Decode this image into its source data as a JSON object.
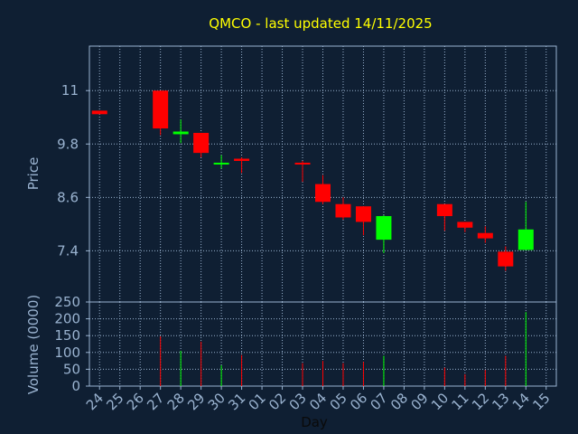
{
  "chart_data": {
    "type": "candlestick",
    "title": "QMCO - last updated 14/11/2025",
    "xlabel": "Day",
    "price_panel": {
      "ylabel": "Price",
      "ylim": [
        6.25,
        12.0
      ],
      "yticks": [
        7.4,
        8.6,
        9.8,
        11
      ],
      "ytick_labels": [
        "7.4",
        "8.6",
        "9.8",
        "11"
      ]
    },
    "volume_panel": {
      "ylabel": "Volume (0000)",
      "ylim": [
        0,
        250
      ],
      "yticks": [
        0,
        50,
        100,
        150,
        200,
        250
      ],
      "ytick_labels": [
        "0",
        "50",
        "100",
        "150",
        "200",
        "250"
      ]
    },
    "x_tick_labels": [
      "24",
      "25",
      "26",
      "27",
      "28",
      "29",
      "30",
      "31",
      "01",
      "02",
      "03",
      "04",
      "05",
      "06",
      "07",
      "08",
      "09",
      "10",
      "11",
      "12",
      "13",
      "14",
      "15"
    ],
    "grid": true,
    "up_color": "#00ff00",
    "down_color": "#ff0000",
    "candles": [
      {
        "day": "24",
        "open": 10.55,
        "high": 10.55,
        "low": 10.47,
        "close": 10.47,
        "volume": 0
      },
      {
        "day": "27",
        "open": 11.0,
        "high": 11.0,
        "low": 10.0,
        "close": 10.15,
        "volume": 148
      },
      {
        "day": "28",
        "open": 10.02,
        "high": 10.35,
        "low": 9.82,
        "close": 10.08,
        "volume": 105
      },
      {
        "day": "29",
        "open": 10.05,
        "high": 10.05,
        "low": 9.5,
        "close": 9.6,
        "volume": 132
      },
      {
        "day": "30",
        "open": 9.35,
        "high": 9.55,
        "low": 9.25,
        "close": 9.38,
        "volume": 62
      },
      {
        "day": "31",
        "open": 9.47,
        "high": 9.5,
        "low": 9.15,
        "close": 9.42,
        "volume": 92
      },
      {
        "day": "03",
        "open": 9.38,
        "high": 9.42,
        "low": 8.95,
        "close": 9.35,
        "volume": 68
      },
      {
        "day": "04",
        "open": 8.9,
        "high": 9.1,
        "low": 8.45,
        "close": 8.5,
        "volume": 75
      },
      {
        "day": "05",
        "open": 8.45,
        "high": 8.6,
        "low": 8.1,
        "close": 8.15,
        "volume": 68
      },
      {
        "day": "06",
        "open": 8.4,
        "high": 8.4,
        "low": 7.75,
        "close": 8.05,
        "volume": 72
      },
      {
        "day": "07",
        "open": 7.65,
        "high": 8.2,
        "low": 7.35,
        "close": 8.18,
        "volume": 90
      },
      {
        "day": "10",
        "open": 8.45,
        "high": 8.45,
        "low": 7.85,
        "close": 8.18,
        "volume": 55
      },
      {
        "day": "11",
        "open": 8.05,
        "high": 8.05,
        "low": 7.82,
        "close": 7.92,
        "volume": 35
      },
      {
        "day": "12",
        "open": 7.8,
        "high": 7.95,
        "low": 7.58,
        "close": 7.68,
        "volume": 48
      },
      {
        "day": "13",
        "open": 7.38,
        "high": 7.5,
        "low": 6.95,
        "close": 7.05,
        "volume": 90
      },
      {
        "day": "14",
        "open": 7.42,
        "high": 8.5,
        "low": 7.42,
        "close": 7.88,
        "volume": 220
      }
    ]
  }
}
